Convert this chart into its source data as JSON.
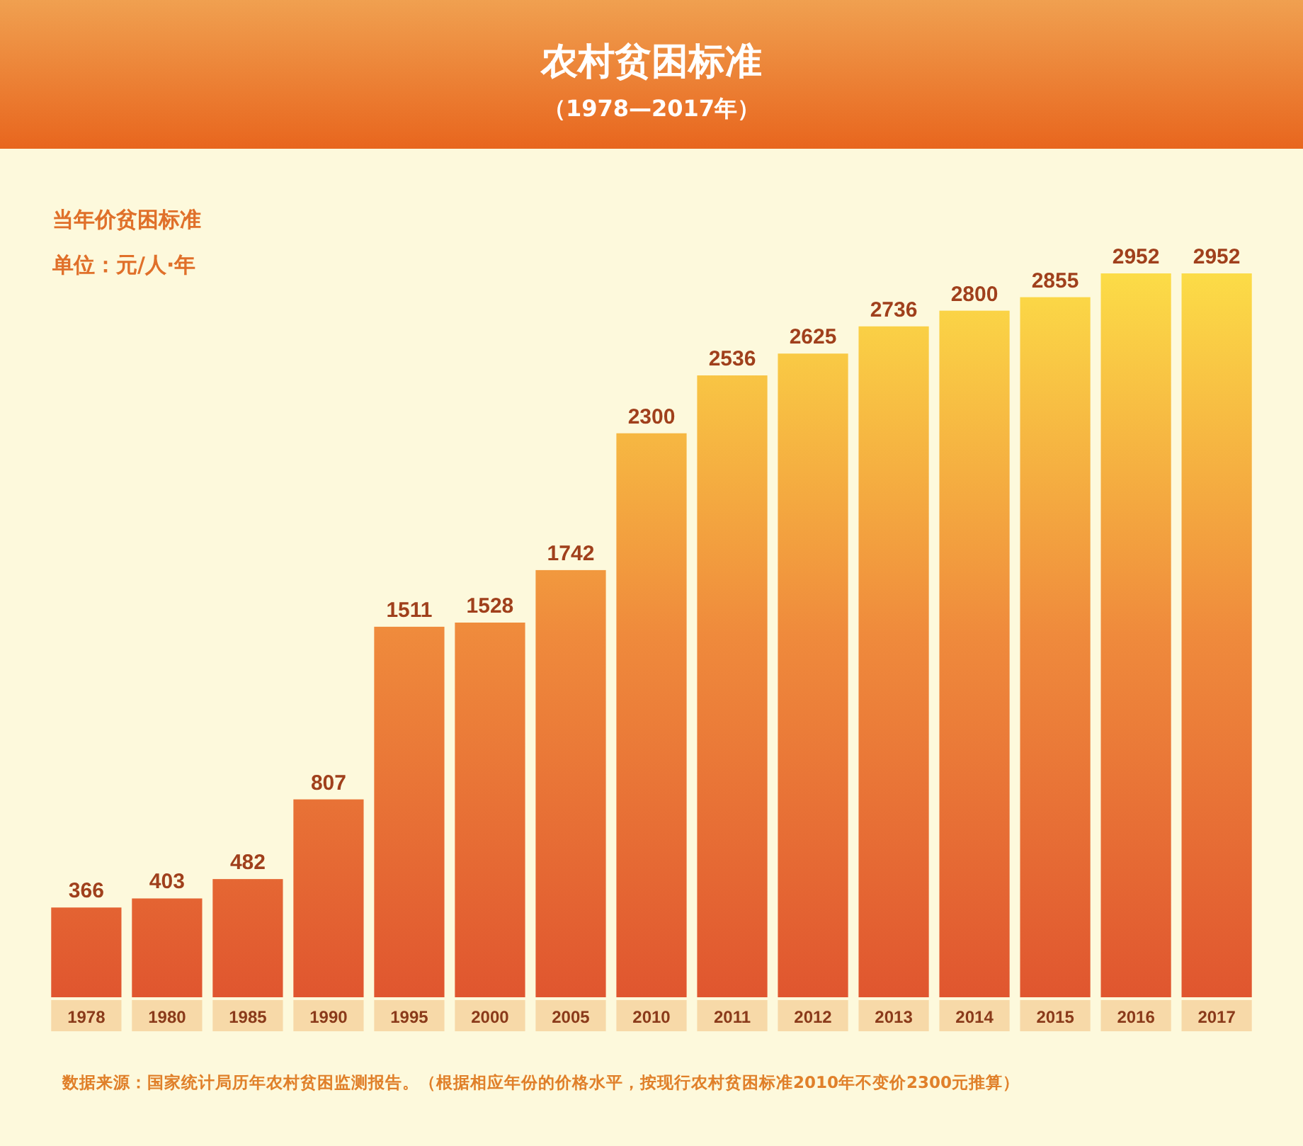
{
  "chart_data": {
    "type": "bar",
    "title": "农村贫困标准",
    "subtitle": "（1978—2017年）",
    "ylabel": "当年价贫困标准",
    "annotations": [
      "单位：元/人·年",
      "数据来源：国家统计局历年农村贫困监测报告。（根据相应年份的价格水平，按现行农村贫困标准2010年不变价2300元推算）"
    ],
    "categories": [
      "1978",
      "1980",
      "1985",
      "1990",
      "1995",
      "2000",
      "2005",
      "2010",
      "2011",
      "2012",
      "2013",
      "2014",
      "2015",
      "2016",
      "2017"
    ],
    "values": [
      366,
      403,
      482,
      807,
      1511,
      1528,
      1742,
      2300,
      2536,
      2625,
      2736,
      2800,
      2855,
      2952,
      2952
    ],
    "color": "#ef8a3c",
    "data_labels": true
  }
}
